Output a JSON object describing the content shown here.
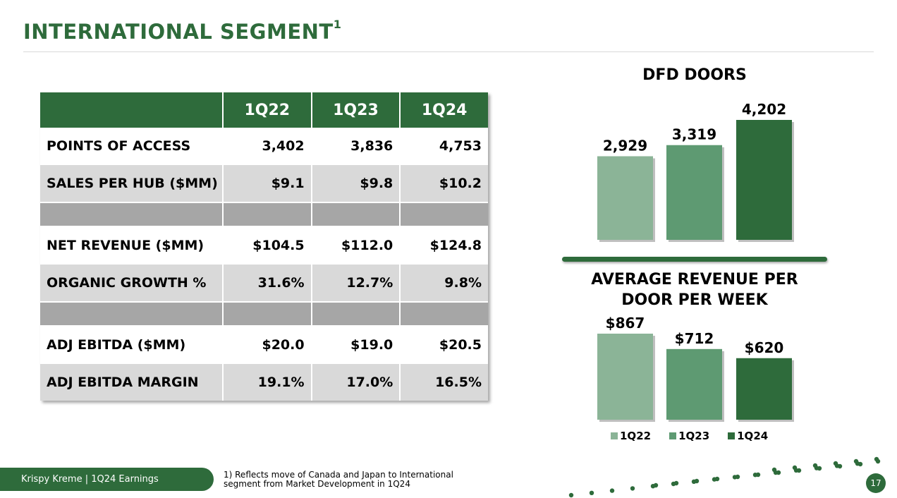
{
  "header": {
    "title": "INTERNATIONAL SEGMENT",
    "title_sup": "1"
  },
  "table": {
    "columns": [
      "1Q22",
      "1Q23",
      "1Q24"
    ],
    "rows": [
      {
        "label": "POINTS OF ACCESS",
        "values": [
          "3,402",
          "3,836",
          "4,753"
        ]
      },
      {
        "label": "SALES PER HUB ($MM)",
        "values": [
          "$9.1",
          "$9.8",
          "$10.2"
        ]
      },
      {
        "label": "NET REVENUE ($MM)",
        "values": [
          "$104.5",
          "$112.0",
          "$124.8"
        ]
      },
      {
        "label": "ORGANIC GROWTH %",
        "values": [
          "31.6%",
          "12.7%",
          "9.8%"
        ]
      },
      {
        "label": "ADJ EBITDA ($MM)",
        "values": [
          "$20.0",
          "$19.0",
          "$20.5"
        ]
      },
      {
        "label": "ADJ EBITDA MARGIN",
        "values": [
          "19.1%",
          "17.0%",
          "16.5%"
        ]
      }
    ]
  },
  "chart_data": [
    {
      "type": "bar",
      "title": "DFD DOORS",
      "categories": [
        "1Q22",
        "1Q23",
        "1Q24"
      ],
      "values": [
        2929,
        3319,
        4202
      ],
      "labels": [
        "2,929",
        "3,319",
        "4,202"
      ],
      "colors": [
        "#8bb497",
        "#5e9a72",
        "#2e6b3b"
      ],
      "ylim": [
        0,
        4202
      ]
    },
    {
      "type": "bar",
      "title": "AVERAGE REVENUE PER DOOR PER WEEK",
      "categories": [
        "1Q22",
        "1Q23",
        "1Q24"
      ],
      "values": [
        867,
        712,
        620
      ],
      "labels": [
        "$867",
        "$712",
        "$620"
      ],
      "colors": [
        "#8bb497",
        "#5e9a72",
        "#2e6b3b"
      ],
      "ylim": [
        0,
        867
      ]
    }
  ],
  "legend": {
    "items": [
      {
        "label": "1Q22",
        "color": "#8bb497"
      },
      {
        "label": "1Q23",
        "color": "#5e9a72"
      },
      {
        "label": "1Q24",
        "color": "#2e6b3b"
      }
    ]
  },
  "footer": {
    "brand": "Krispy Kreme  |  1Q24 Earnings",
    "footnote": "1) Reflects move of Canada and Japan to International segment from Market Development in 1Q24",
    "page": "17"
  }
}
